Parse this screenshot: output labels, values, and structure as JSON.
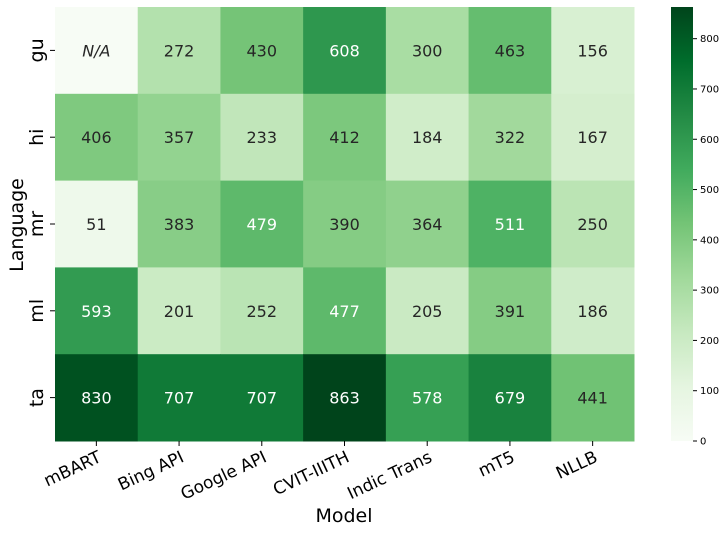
{
  "chart_data": {
    "type": "heatmap",
    "title": "",
    "xlabel": "Model",
    "ylabel": "Language",
    "x_categories": [
      "mBART",
      "Bing API",
      "Google API",
      "CVIT-IIITH",
      "Indic Trans",
      "mT5",
      "NLLB"
    ],
    "y_categories": [
      "gu",
      "hi",
      "mr",
      "ml",
      "ta"
    ],
    "values": [
      [
        null,
        272,
        430,
        608,
        300,
        463,
        156
      ],
      [
        406,
        357,
        233,
        412,
        184,
        322,
        167
      ],
      [
        51,
        383,
        479,
        390,
        364,
        511,
        250
      ],
      [
        593,
        201,
        252,
        477,
        205,
        391,
        186
      ],
      [
        830,
        707,
        707,
        863,
        578,
        679,
        441
      ]
    ],
    "missing_label": "N/A",
    "colormap": "Greens",
    "colorbar": {
      "range": [
        0,
        863
      ],
      "ticks": [
        0,
        100,
        200,
        300,
        400,
        500,
        600,
        700,
        800
      ]
    },
    "colors": {
      "low": "#f7fcf5",
      "high": "#00441b",
      "text_dark": "#262626",
      "text_light": "#ffffff"
    }
  }
}
